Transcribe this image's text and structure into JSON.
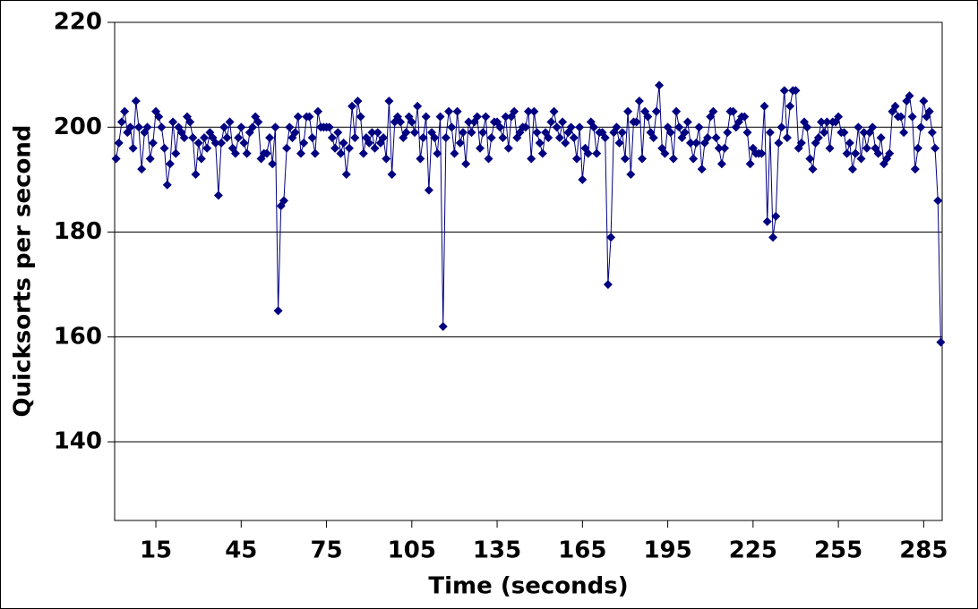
{
  "chart_data": {
    "type": "line",
    "xlabel": "Time (seconds)",
    "ylabel": "Quicksorts per second",
    "color": "#000080",
    "marker": "diamond",
    "grid": true,
    "xlim": [
      0.5,
      291.5
    ],
    "xticks": [
      15,
      45,
      75,
      105,
      135,
      165,
      195,
      225,
      255,
      285
    ],
    "ylim": [
      125,
      220
    ],
    "yticks": [
      140,
      160,
      180,
      200,
      220
    ],
    "x": [
      1,
      2,
      3,
      4,
      5,
      6,
      7,
      8,
      9,
      10,
      11,
      12,
      13,
      14,
      15,
      16,
      17,
      18,
      19,
      20,
      21,
      22,
      23,
      24,
      25,
      26,
      27,
      28,
      29,
      30,
      31,
      32,
      33,
      34,
      35,
      36,
      37,
      38,
      39,
      40,
      41,
      42,
      43,
      44,
      45,
      46,
      47,
      48,
      49,
      50,
      51,
      52,
      53,
      54,
      55,
      56,
      57,
      58,
      59,
      60,
      61,
      62,
      63,
      64,
      65,
      66,
      67,
      68,
      69,
      70,
      71,
      72,
      73,
      74,
      75,
      76,
      77,
      78,
      79,
      80,
      81,
      82,
      83,
      84,
      85,
      86,
      87,
      88,
      89,
      90,
      91,
      92,
      93,
      94,
      95,
      96,
      97,
      98,
      99,
      100,
      101,
      102,
      103,
      104,
      105,
      106,
      107,
      108,
      109,
      110,
      111,
      112,
      113,
      114,
      115,
      116,
      117,
      118,
      119,
      120,
      121,
      122,
      123,
      124,
      125,
      126,
      127,
      128,
      129,
      130,
      131,
      132,
      133,
      134,
      135,
      136,
      137,
      138,
      139,
      140,
      141,
      142,
      143,
      144,
      145,
      146,
      147,
      148,
      149,
      150,
      151,
      152,
      153,
      154,
      155,
      156,
      157,
      158,
      159,
      160,
      161,
      162,
      163,
      164,
      165,
      166,
      167,
      168,
      169,
      170,
      171,
      172,
      173,
      174,
      175,
      176,
      177,
      178,
      179,
      180,
      181,
      182,
      183,
      184,
      185,
      186,
      187,
      188,
      189,
      190,
      191,
      192,
      193,
      194,
      195,
      196,
      197,
      198,
      199,
      200,
      201,
      202,
      203,
      204,
      205,
      206,
      207,
      208,
      209,
      210,
      211,
      212,
      213,
      214,
      215,
      216,
      217,
      218,
      219,
      220,
      221,
      222,
      223,
      224,
      225,
      226,
      227,
      228,
      229,
      230,
      231,
      232,
      233,
      234,
      235,
      236,
      237,
      238,
      239,
      240,
      241,
      242,
      243,
      244,
      245,
      246,
      247,
      248,
      249,
      250,
      251,
      252,
      253,
      254,
      255,
      256,
      257,
      258,
      259,
      260,
      261,
      262,
      263,
      264,
      265,
      266,
      267,
      268,
      269,
      270,
      271,
      272,
      273,
      274,
      275,
      276,
      277,
      278,
      279,
      280,
      281,
      282,
      283,
      284,
      285,
      286,
      287,
      288,
      289,
      290,
      291
    ],
    "values": [
      194,
      197,
      201,
      203,
      199,
      200,
      196,
      205,
      200,
      192,
      199,
      200,
      194,
      197,
      203,
      202,
      200,
      196,
      189,
      193,
      201,
      195,
      200,
      199,
      198,
      202,
      201,
      198,
      191,
      197,
      194,
      198,
      196,
      199,
      198,
      197,
      187,
      197,
      200,
      198,
      201,
      196,
      195,
      198,
      200,
      197,
      195,
      199,
      200,
      202,
      201,
      194,
      195,
      195,
      198,
      193,
      200,
      165,
      185,
      186,
      196,
      200,
      198,
      199,
      202,
      195,
      197,
      202,
      202,
      198,
      195,
      203,
      200,
      200,
      200,
      200,
      198,
      196,
      199,
      195,
      197,
      191,
      196,
      204,
      198,
      205,
      202,
      195,
      198,
      197,
      199,
      196,
      199,
      197,
      198,
      194,
      205,
      191,
      201,
      202,
      201,
      198,
      199,
      202,
      201,
      199,
      204,
      194,
      198,
      202,
      188,
      199,
      198,
      195,
      202,
      162,
      198,
      203,
      200,
      195,
      203,
      197,
      199,
      193,
      201,
      199,
      201,
      202,
      196,
      199,
      202,
      194,
      198,
      201,
      201,
      200,
      198,
      202,
      196,
      202,
      203,
      198,
      199,
      200,
      200,
      203,
      194,
      203,
      199,
      197,
      195,
      199,
      198,
      201,
      203,
      200,
      198,
      201,
      197,
      199,
      200,
      198,
      194,
      200,
      190,
      196,
      195,
      201,
      200,
      195,
      199,
      199,
      198,
      170,
      179,
      199,
      200,
      197,
      199,
      194,
      203,
      191,
      201,
      201,
      205,
      194,
      203,
      202,
      199,
      198,
      203,
      208,
      196,
      195,
      200,
      199,
      194,
      203,
      200,
      198,
      199,
      201,
      197,
      194,
      197,
      200,
      192,
      197,
      198,
      202,
      203,
      198,
      196,
      193,
      196,
      199,
      203,
      203,
      200,
      201,
      202,
      202,
      199,
      193,
      196,
      195,
      195,
      195,
      204,
      182,
      199,
      179,
      183,
      197,
      200,
      207,
      198,
      204,
      207,
      207,
      196,
      197,
      201,
      200,
      194,
      192,
      197,
      198,
      201,
      199,
      201,
      196,
      201,
      201,
      202,
      199,
      199,
      195,
      197,
      192,
      195,
      200,
      194,
      199,
      196,
      199,
      200,
      196,
      195,
      198,
      193,
      194,
      195,
      203,
      204,
      202,
      202,
      199,
      205,
      206,
      202,
      192,
      196,
      200,
      205,
      202,
      203,
      199,
      196,
      186,
      159
    ]
  }
}
